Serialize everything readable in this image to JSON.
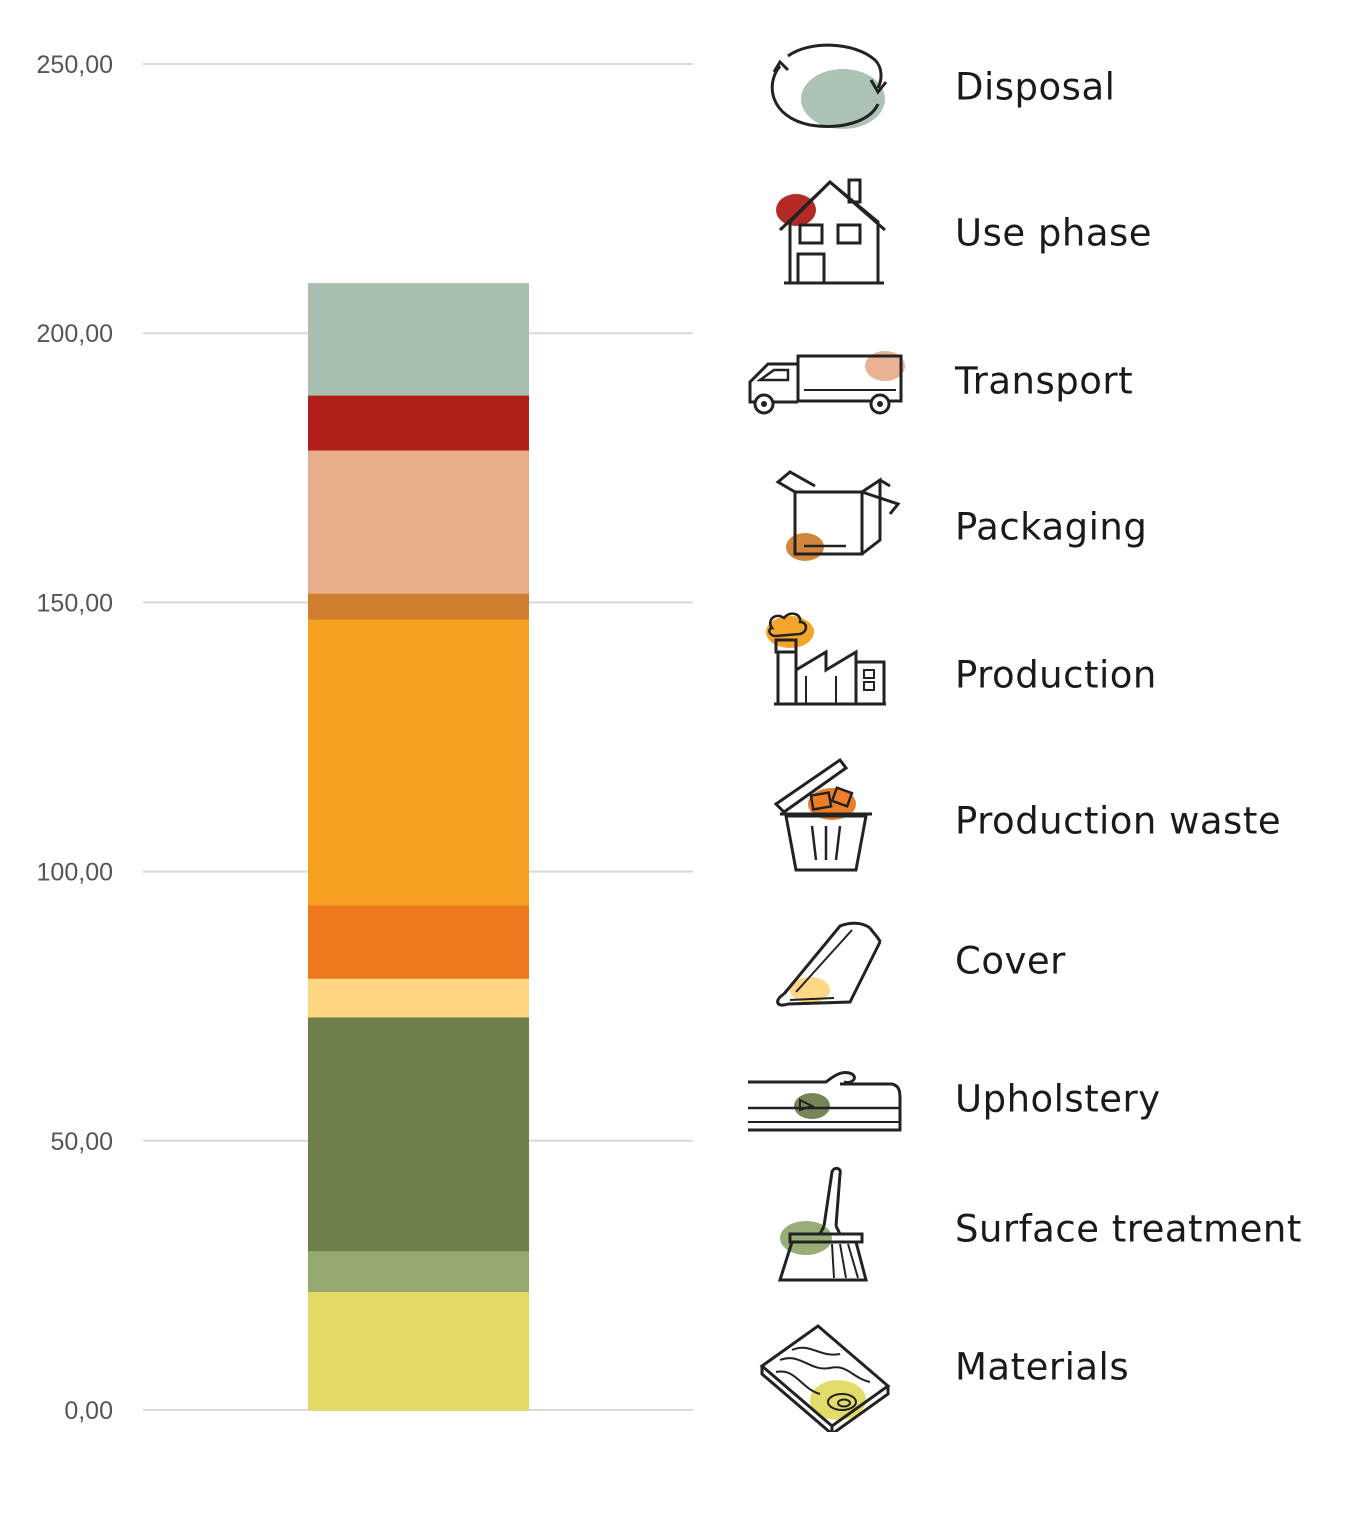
{
  "chart_data": {
    "type": "bar",
    "stacked": true,
    "categories": [
      ""
    ],
    "ylim": [
      0,
      250
    ],
    "yticks": [
      "0,00",
      "50,00",
      "100,00",
      "150,00",
      "200,00",
      "250,00"
    ],
    "ytick_values": [
      0,
      50,
      100,
      150,
      200,
      250
    ],
    "grid": true,
    "legend_position": "right",
    "series": [
      {
        "name": "Materials",
        "values": [
          22
        ],
        "color": "#e2da62",
        "icon": "wood-plank-icon"
      },
      {
        "name": "Surface treatment",
        "values": [
          7.6
        ],
        "color": "#94aa70",
        "icon": "brush-icon"
      },
      {
        "name": "Upholstery",
        "values": [
          43.4
        ],
        "color": "#6f7f4c",
        "icon": "foam-cushion-icon"
      },
      {
        "name": "Cover",
        "values": [
          7.2
        ],
        "color": "#fed67f",
        "icon": "fabric-roll-icon"
      },
      {
        "name": "Production waste",
        "values": [
          13.6
        ],
        "color": "#ed781f",
        "icon": "trash-bin-icon"
      },
      {
        "name": "Production",
        "values": [
          53.1
        ],
        "color": "#f6a020",
        "icon": "factory-icon"
      },
      {
        "name": "Packaging",
        "values": [
          4.8
        ],
        "color": "#d07f30",
        "icon": "box-icon"
      },
      {
        "name": "Transport",
        "values": [
          26.6
        ],
        "color": "#e8ae8c",
        "icon": "truck-icon"
      },
      {
        "name": "Use phase",
        "values": [
          10.2
        ],
        "color": "#b11f1a",
        "icon": "house-icon"
      },
      {
        "name": "Disposal",
        "values": [
          20.8
        ],
        "color": "#a8bfb0",
        "icon": "recycle-icon"
      }
    ]
  },
  "legend": [
    {
      "label": "Disposal",
      "icon": "recycle-icon",
      "color": "#a8bfb0"
    },
    {
      "label": "Use phase",
      "icon": "house-icon",
      "color": "#b11f1a"
    },
    {
      "label": "Transport",
      "icon": "truck-icon",
      "color": "#e8ae8c"
    },
    {
      "label": "Packaging",
      "icon": "box-icon",
      "color": "#d07f30"
    },
    {
      "label": "Production",
      "icon": "factory-icon",
      "color": "#f6a020"
    },
    {
      "label": "Production waste",
      "icon": "trash-bin-icon",
      "color": "#ed781f"
    },
    {
      "label": "Cover",
      "icon": "fabric-roll-icon",
      "color": "#fed67f"
    },
    {
      "label": "Upholstery",
      "icon": "foam-cushion-icon",
      "color": "#6f7f4c"
    },
    {
      "label": "Surface treatment",
      "icon": "brush-icon",
      "color": "#94aa70"
    },
    {
      "label": "Materials",
      "icon": "wood-plank-icon",
      "color": "#e2da62"
    }
  ]
}
